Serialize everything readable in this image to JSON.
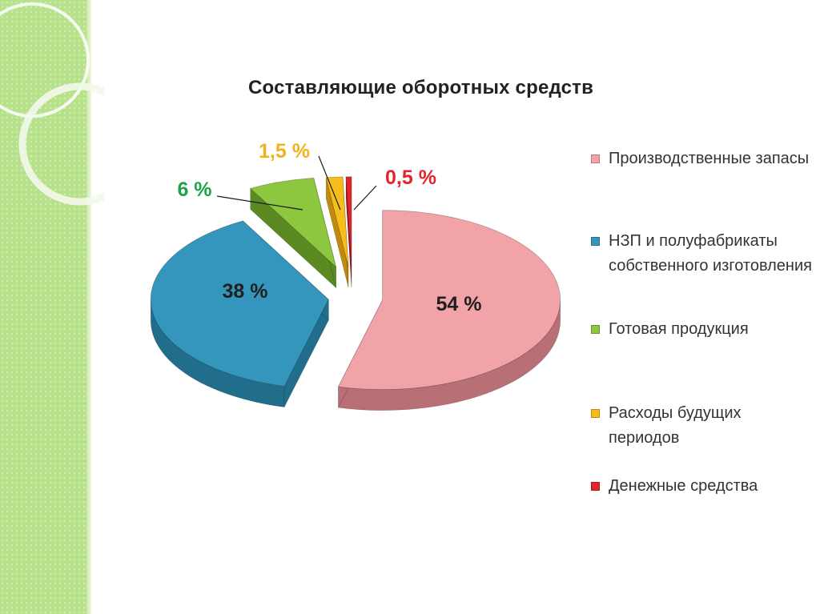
{
  "slide": {
    "title": "Составляющие оборотных средств"
  },
  "chart_data": {
    "type": "pie",
    "title": "Составляющие оборотных средств",
    "series": [
      {
        "name": "Производственные запасы",
        "value": 54,
        "label": "54 %",
        "color": "#f2a3a8",
        "side_color": "#b86f75",
        "label_color": "#1f1f1f"
      },
      {
        "name": "НЗП и полуфабрикаты собственного изготовления",
        "value": 38,
        "label": "38 %",
        "color": "#3596bd",
        "side_color": "#216e8c",
        "label_color": "#1f1f1f"
      },
      {
        "name": "Готовая продукция",
        "value": 6,
        "label": "6 %",
        "color": "#8dc63f",
        "side_color": "#5b8a22",
        "label_color": "#1aa347"
      },
      {
        "name": "Расходы будущих периодов",
        "value": 1.5,
        "label": "1,5 %",
        "color": "#f7bd1a",
        "side_color": "#c08b0a",
        "label_color": "#f2b21b"
      },
      {
        "name": "Денежные средства",
        "value": 0.5,
        "label": "0,5 %",
        "color": "#e2242b",
        "side_color": "#a51418",
        "label_color": "#e2242b"
      }
    ],
    "legend_position": "right"
  }
}
